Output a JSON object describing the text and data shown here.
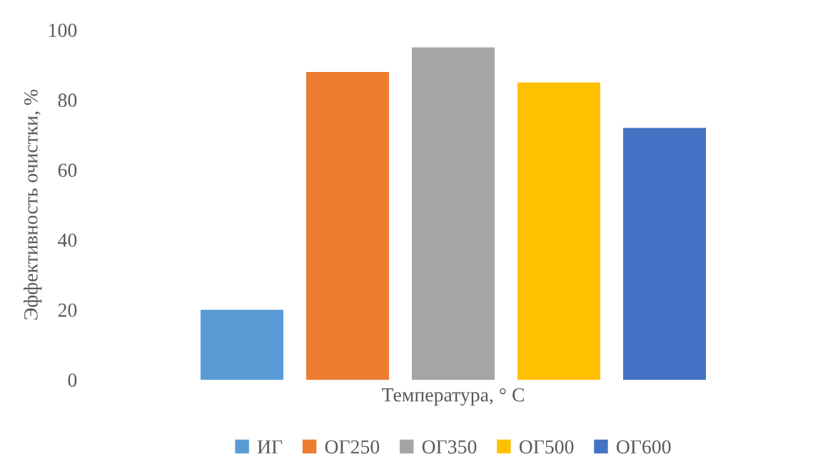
{
  "chart_data": {
    "type": "bar",
    "xlabel": "Температура, ° C",
    "ylabel": "Эффективность очистки, %",
    "categories": [
      null
    ],
    "series": [
      {
        "name": "ИГ",
        "color": "#5b9bd5",
        "values": [
          20
        ]
      },
      {
        "name": "ОГ250",
        "color": "#ed7d31",
        "values": [
          88
        ]
      },
      {
        "name": "ОГ350",
        "color": "#a5a5a5",
        "values": [
          95
        ]
      },
      {
        "name": "ОГ500",
        "color": "#ffc000",
        "values": [
          85
        ]
      },
      {
        "name": "ОГ600",
        "color": "#4472c4",
        "values": [
          72
        ]
      }
    ],
    "ylim": [
      0,
      100
    ],
    "yticks": [
      0,
      20,
      40,
      60,
      80,
      100
    ],
    "grid": false,
    "legend": "bottom",
    "tick_labels": "y"
  }
}
